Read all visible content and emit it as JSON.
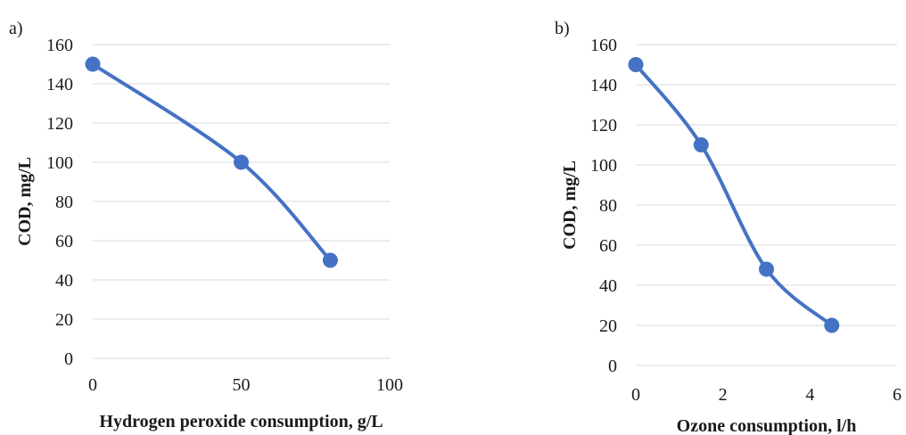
{
  "chart_data": [
    {
      "panel_label": "a)",
      "type": "line",
      "smooth": true,
      "xlabel": "Hydrogen peroxide consumption, g/L",
      "ylabel": "COD, mg/L",
      "xlim": [
        0,
        100
      ],
      "ylim": [
        0,
        160
      ],
      "xticks": [
        0,
        50,
        100
      ],
      "yticks": [
        0,
        20,
        40,
        60,
        80,
        100,
        120,
        140,
        160
      ],
      "grid": true,
      "series": [
        {
          "x": [
            0,
            50,
            80
          ],
          "y": [
            150,
            100,
            50
          ]
        }
      ],
      "colors": {
        "series": "#4472c4",
        "grid": "#d9d9d9"
      }
    },
    {
      "panel_label": "b)",
      "type": "line",
      "smooth": true,
      "xlabel": "Ozone consumption, l/h",
      "ylabel": "COD, mg/L",
      "xlim": [
        0,
        6
      ],
      "ylim": [
        0,
        160
      ],
      "xticks": [
        0,
        2,
        4,
        6
      ],
      "yticks": [
        0,
        20,
        40,
        60,
        80,
        100,
        120,
        140,
        160
      ],
      "grid": true,
      "series": [
        {
          "x": [
            0,
            1.5,
            3,
            4.5
          ],
          "y": [
            150,
            110,
            48,
            20
          ]
        }
      ],
      "colors": {
        "series": "#4472c4",
        "grid": "#d9d9d9"
      }
    }
  ]
}
